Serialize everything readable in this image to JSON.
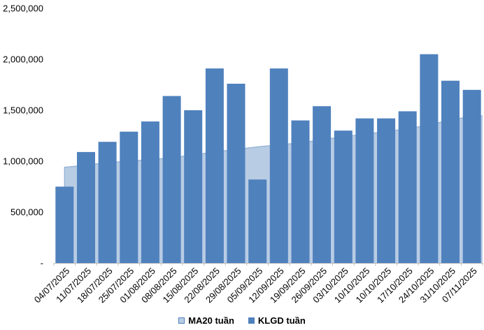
{
  "chart_data": {
    "type": "bar",
    "title": "",
    "xlabel": "",
    "ylabel": "",
    "ylim": [
      0,
      2500000
    ],
    "grid": false,
    "legend_position": "bottom",
    "categories": [
      "04/07/2025",
      "11/07/2025",
      "18/07/2025",
      "25/07/2025",
      "01/08/2025",
      "08/08/2025",
      "15/08/2025",
      "22/08/2025",
      "29/08/2025",
      "05/09/2025",
      "12/09/2025",
      "19/09/2025",
      "26/09/2025",
      "03/10/2025",
      "10/10/2025",
      "10/10/2025",
      "17/10/2025",
      "24/10/2025",
      "31/10/2025",
      "07/11/2025"
    ],
    "series": [
      {
        "name": "MA20 tuần",
        "render": "area",
        "fill_color": "#B8CCE4",
        "line_color": "#95B3D7",
        "values": [
          940000,
          960000,
          985000,
          1000000,
          1015000,
          1035000,
          1060000,
          1090000,
          1115000,
          1140000,
          1160000,
          1180000,
          1210000,
          1240000,
          1265000,
          1290000,
          1320000,
          1355000,
          1405000,
          1440000
        ],
        "right_edge_value": 1445000
      },
      {
        "name": "KLGD tuần",
        "render": "bar",
        "fill_color": "#4F81BD",
        "values": [
          750000,
          1090000,
          1190000,
          1290000,
          1390000,
          1640000,
          1500000,
          1910000,
          1760000,
          820000,
          1910000,
          1400000,
          1540000,
          1300000,
          1420000,
          1420000,
          1490000,
          2050000,
          1790000,
          1700000
        ]
      }
    ],
    "y_ticks": [
      {
        "value": 2500000,
        "label": "2,500,000"
      },
      {
        "value": 2000000,
        "label": "2,000,000"
      },
      {
        "value": 1500000,
        "label": "1,500,000"
      },
      {
        "value": 1000000,
        "label": "1,000,000"
      },
      {
        "value": 500000,
        "label": "500,000"
      },
      {
        "value": 0,
        "label": "-"
      }
    ],
    "axis_color": "#BFBFBF",
    "text_color": "#000000"
  }
}
